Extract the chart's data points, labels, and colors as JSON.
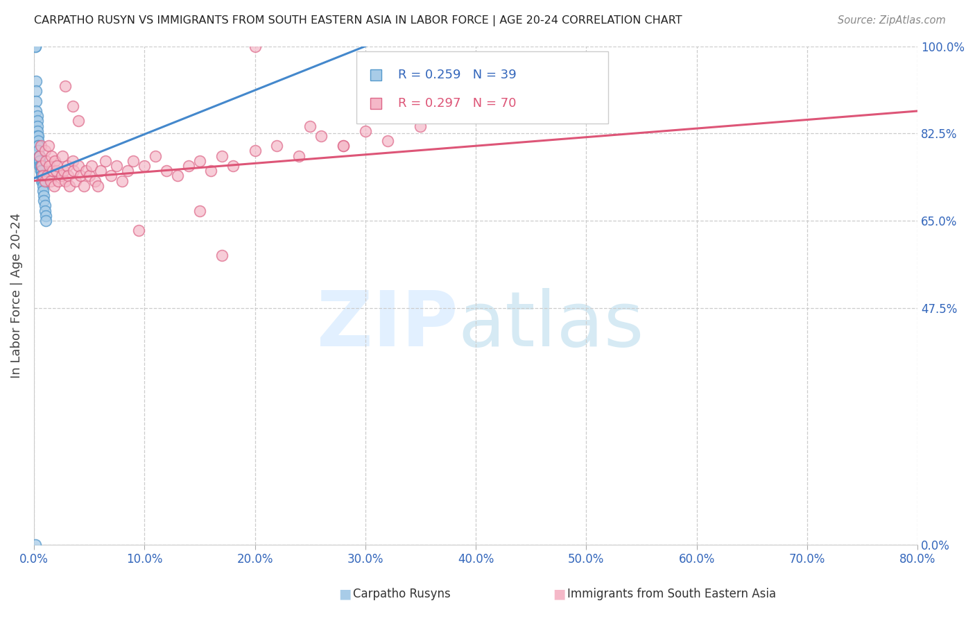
{
  "title": "CARPATHO RUSYN VS IMMIGRANTS FROM SOUTH EASTERN ASIA IN LABOR FORCE | AGE 20-24 CORRELATION CHART",
  "source": "Source: ZipAtlas.com",
  "ylabel": "In Labor Force | Age 20-24",
  "xlim": [
    0.0,
    0.8
  ],
  "ylim": [
    0.0,
    1.0
  ],
  "yticks": [
    0.0,
    0.475,
    0.65,
    0.825,
    1.0
  ],
  "ytick_labels": [
    "0.0%",
    "47.5%",
    "65.0%",
    "82.5%",
    "100.0%"
  ],
  "xticks": [
    0.0,
    0.1,
    0.2,
    0.3,
    0.4,
    0.5,
    0.6,
    0.7,
    0.8
  ],
  "xtick_labels": [
    "0.0%",
    "10.0%",
    "20.0%",
    "30.0%",
    "40.0%",
    "50.0%",
    "60.0%",
    "70.0%",
    "80.0%"
  ],
  "blue_fill": "#a8cce8",
  "blue_edge": "#5599cc",
  "pink_fill": "#f5b8c8",
  "pink_edge": "#dd6688",
  "blue_line": "#4488cc",
  "pink_line": "#dd5577",
  "blue_R": 0.259,
  "blue_N": 39,
  "pink_R": 0.297,
  "pink_N": 70,
  "legend_label_blue": "Carpatho Rusyns",
  "legend_label_pink": "Immigrants from South Eastern Asia",
  "blue_scatter_x": [
    0.001,
    0.001,
    0.002,
    0.002,
    0.002,
    0.002,
    0.003,
    0.003,
    0.003,
    0.003,
    0.003,
    0.004,
    0.004,
    0.004,
    0.004,
    0.004,
    0.005,
    0.005,
    0.005,
    0.005,
    0.005,
    0.006,
    0.006,
    0.006,
    0.006,
    0.007,
    0.007,
    0.007,
    0.007,
    0.008,
    0.008,
    0.008,
    0.009,
    0.009,
    0.01,
    0.01,
    0.011,
    0.011,
    0.001
  ],
  "blue_scatter_y": [
    1.0,
    1.0,
    0.93,
    0.91,
    0.89,
    0.87,
    0.86,
    0.85,
    0.84,
    0.83,
    0.82,
    0.82,
    0.81,
    0.8,
    0.8,
    0.79,
    0.78,
    0.78,
    0.77,
    0.77,
    0.76,
    0.76,
    0.76,
    0.75,
    0.75,
    0.75,
    0.74,
    0.74,
    0.73,
    0.73,
    0.72,
    0.71,
    0.7,
    0.69,
    0.68,
    0.67,
    0.66,
    0.65,
    0.0
  ],
  "pink_scatter_x": [
    0.005,
    0.006,
    0.007,
    0.008,
    0.01,
    0.01,
    0.011,
    0.012,
    0.013,
    0.014,
    0.015,
    0.016,
    0.017,
    0.018,
    0.019,
    0.02,
    0.021,
    0.022,
    0.025,
    0.026,
    0.027,
    0.028,
    0.03,
    0.031,
    0.032,
    0.035,
    0.036,
    0.038,
    0.04,
    0.042,
    0.045,
    0.047,
    0.05,
    0.052,
    0.055,
    0.058,
    0.06,
    0.065,
    0.07,
    0.075,
    0.08,
    0.085,
    0.09,
    0.1,
    0.11,
    0.12,
    0.13,
    0.14,
    0.15,
    0.16,
    0.17,
    0.18,
    0.2,
    0.22,
    0.24,
    0.26,
    0.28,
    0.3,
    0.32,
    0.35,
    0.028,
    0.035,
    0.04,
    0.2,
    0.43,
    0.25,
    0.28,
    0.15,
    0.095,
    0.17
  ],
  "pink_scatter_y": [
    0.78,
    0.8,
    0.76,
    0.74,
    0.79,
    0.73,
    0.77,
    0.74,
    0.8,
    0.76,
    0.73,
    0.78,
    0.75,
    0.72,
    0.77,
    0.75,
    0.76,
    0.73,
    0.74,
    0.78,
    0.75,
    0.73,
    0.76,
    0.74,
    0.72,
    0.77,
    0.75,
    0.73,
    0.76,
    0.74,
    0.72,
    0.75,
    0.74,
    0.76,
    0.73,
    0.72,
    0.75,
    0.77,
    0.74,
    0.76,
    0.73,
    0.75,
    0.77,
    0.76,
    0.78,
    0.75,
    0.74,
    0.76,
    0.77,
    0.75,
    0.78,
    0.76,
    0.79,
    0.8,
    0.78,
    0.82,
    0.8,
    0.83,
    0.81,
    0.84,
    0.92,
    0.88,
    0.85,
    1.0,
    0.86,
    0.84,
    0.8,
    0.67,
    0.63,
    0.58
  ],
  "blue_line_x0": 0.0,
  "blue_line_y0": 0.735,
  "blue_line_x1": 0.3,
  "blue_line_y1": 1.0,
  "pink_line_x0": 0.0,
  "pink_line_y0": 0.73,
  "pink_line_x1": 0.8,
  "pink_line_y1": 0.87
}
